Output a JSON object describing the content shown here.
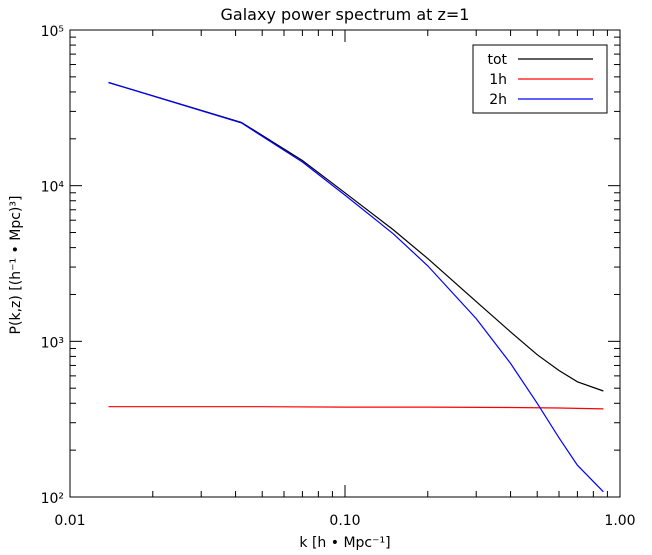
{
  "chart_data": {
    "type": "line",
    "title": "Galaxy power spectrum at z=1",
    "xlabel": "k [h • Mpc⁻¹]",
    "ylabel": "P(k,z) [(h⁻¹ • Mpc)³]",
    "xscale": "log",
    "yscale": "log",
    "xlim": [
      0.01,
      1.0
    ],
    "ylim": [
      100,
      100000
    ],
    "x_ticks": [
      {
        "value": 0.01,
        "label": "0.01"
      },
      {
        "value": 0.1,
        "label": "0.10"
      },
      {
        "value": 1.0,
        "label": "1.00"
      }
    ],
    "y_ticks": [
      {
        "value": 100,
        "label": "10²"
      },
      {
        "value": 1000,
        "label": "10³"
      },
      {
        "value": 10000,
        "label": "10⁴"
      },
      {
        "value": 100000,
        "label": "10⁵"
      }
    ],
    "grid": false,
    "legend_position": "top-right",
    "series": [
      {
        "name": "tot",
        "color": "#000000",
        "x": [
          0.0138,
          0.042,
          0.07,
          0.1,
          0.15,
          0.2,
          0.3,
          0.4,
          0.5,
          0.6,
          0.7,
          0.87
        ],
        "y": [
          46000,
          25500,
          14500,
          9000,
          5200,
          3400,
          1800,
          1150,
          820,
          650,
          550,
          480
        ]
      },
      {
        "name": "1h",
        "color": "#ff0000",
        "x": [
          0.0138,
          0.05,
          0.1,
          0.2,
          0.4,
          0.6,
          0.87
        ],
        "y": [
          380,
          380,
          378,
          378,
          376,
          373,
          368
        ]
      },
      {
        "name": "2h",
        "color": "#0000ff",
        "x": [
          0.0138,
          0.042,
          0.07,
          0.1,
          0.15,
          0.2,
          0.3,
          0.4,
          0.5,
          0.6,
          0.7,
          0.87
        ],
        "y": [
          46000,
          25300,
          14200,
          8700,
          4900,
          3050,
          1400,
          720,
          400,
          240,
          160,
          108
        ]
      }
    ]
  }
}
